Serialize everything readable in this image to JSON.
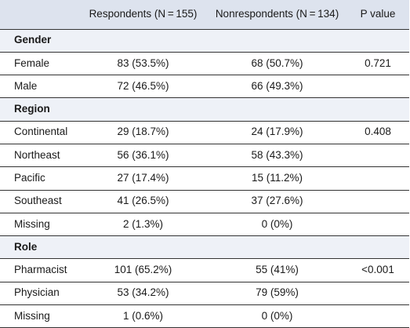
{
  "table": {
    "headers": [
      "",
      "Respondents (N = 155)",
      "Nonrespondents (N = 134)",
      "P value"
    ],
    "rows": [
      {
        "type": "section",
        "label": "Gender"
      },
      {
        "type": "data",
        "label": "Female",
        "respondents": "83 (53.5%)",
        "nonrespondents": "68 (50.7%)",
        "p": "0.721"
      },
      {
        "type": "data",
        "label": "Male",
        "respondents": "72 (46.5%)",
        "nonrespondents": "66 (49.3%)",
        "p": ""
      },
      {
        "type": "section",
        "label": "Region"
      },
      {
        "type": "data",
        "label": "Continental",
        "respondents": "29 (18.7%)",
        "nonrespondents": "24 (17.9%)",
        "p": "0.408"
      },
      {
        "type": "data",
        "label": "Northeast",
        "respondents": "56 (36.1%)",
        "nonrespondents": "58 (43.3%)",
        "p": ""
      },
      {
        "type": "data",
        "label": "Pacific",
        "respondents": "27 (17.4%)",
        "nonrespondents": "15 (11.2%)",
        "p": ""
      },
      {
        "type": "data",
        "label": "Southeast",
        "respondents": "41 (26.5%)",
        "nonrespondents": "37 (27.6%)",
        "p": ""
      },
      {
        "type": "data",
        "label": "Missing",
        "respondents": "2 (1.3%)",
        "nonrespondents": "0 (0%)",
        "p": ""
      },
      {
        "type": "section",
        "label": "Role"
      },
      {
        "type": "data",
        "label": "Pharmacist",
        "respondents": "101 (65.2%)",
        "nonrespondents": "55 (41%)",
        "p": "<0.001"
      },
      {
        "type": "data",
        "label": "Physician",
        "respondents": "53 (34.2%)",
        "nonrespondents": "79 (59%)",
        "p": ""
      },
      {
        "type": "data",
        "label": "Missing",
        "respondents": "1 (0.6%)",
        "nonrespondents": "0 (0%)",
        "p": ""
      }
    ]
  }
}
